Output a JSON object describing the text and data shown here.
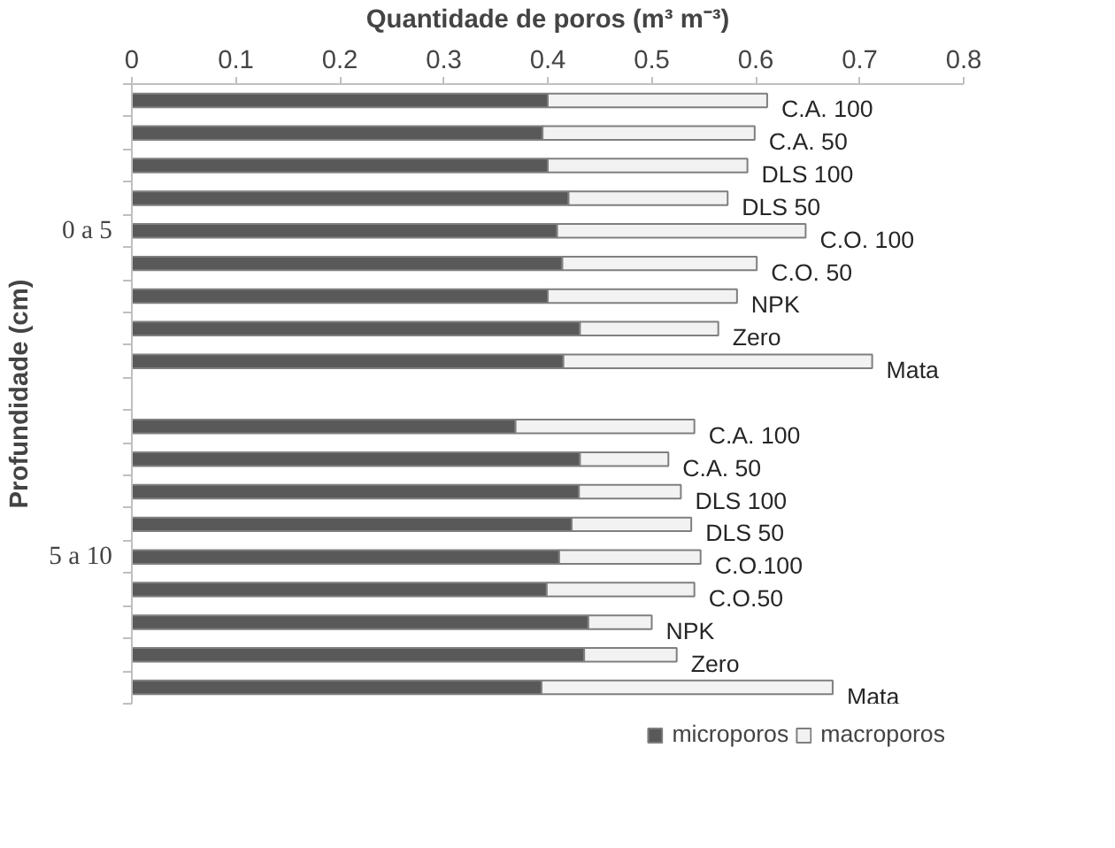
{
  "chart_data": {
    "type": "bar",
    "orientation": "horizontal",
    "stacked": true,
    "xlabel": "Quantidade de poros (m³ m⁻³)",
    "ylabel": "Profundidade (cm)",
    "categories": [
      "C.A. 100",
      "C.A. 50",
      "DLS 100",
      "DLS 50",
      "C.O. 100",
      "C.O. 50",
      "NPK",
      "Zero",
      "Mata",
      null,
      "C.A. 100",
      "C.A. 50",
      "DLS 100",
      "DLS 50",
      "C.O.100",
      "C.O.50",
      "NPK",
      "Zero",
      "Mata"
    ],
    "series": [
      {
        "name": "microporos",
        "color": "#595959",
        "values": [
          0.4,
          0.395,
          0.4,
          0.42,
          0.409,
          0.414,
          0.4,
          0.431,
          0.415,
          null,
          0.369,
          0.431,
          0.43,
          0.423,
          0.411,
          0.399,
          0.439,
          0.435,
          0.394
        ]
      },
      {
        "name": "macroporos",
        "color": "#f2f2f2",
        "values": [
          0.211,
          0.204,
          0.192,
          0.153,
          0.239,
          0.187,
          0.182,
          0.133,
          0.297,
          null,
          0.172,
          0.085,
          0.098,
          0.115,
          0.136,
          0.142,
          0.061,
          0.089,
          0.28
        ]
      }
    ],
    "annotations": [
      "0 a 5",
      "5 a 10"
    ],
    "xlim": [
      0,
      0.8
    ],
    "xticks": [
      0,
      0.1,
      0.2,
      0.3,
      0.4,
      0.5,
      0.6,
      0.7,
      0.8
    ],
    "grid": false,
    "legend": "bottom"
  }
}
